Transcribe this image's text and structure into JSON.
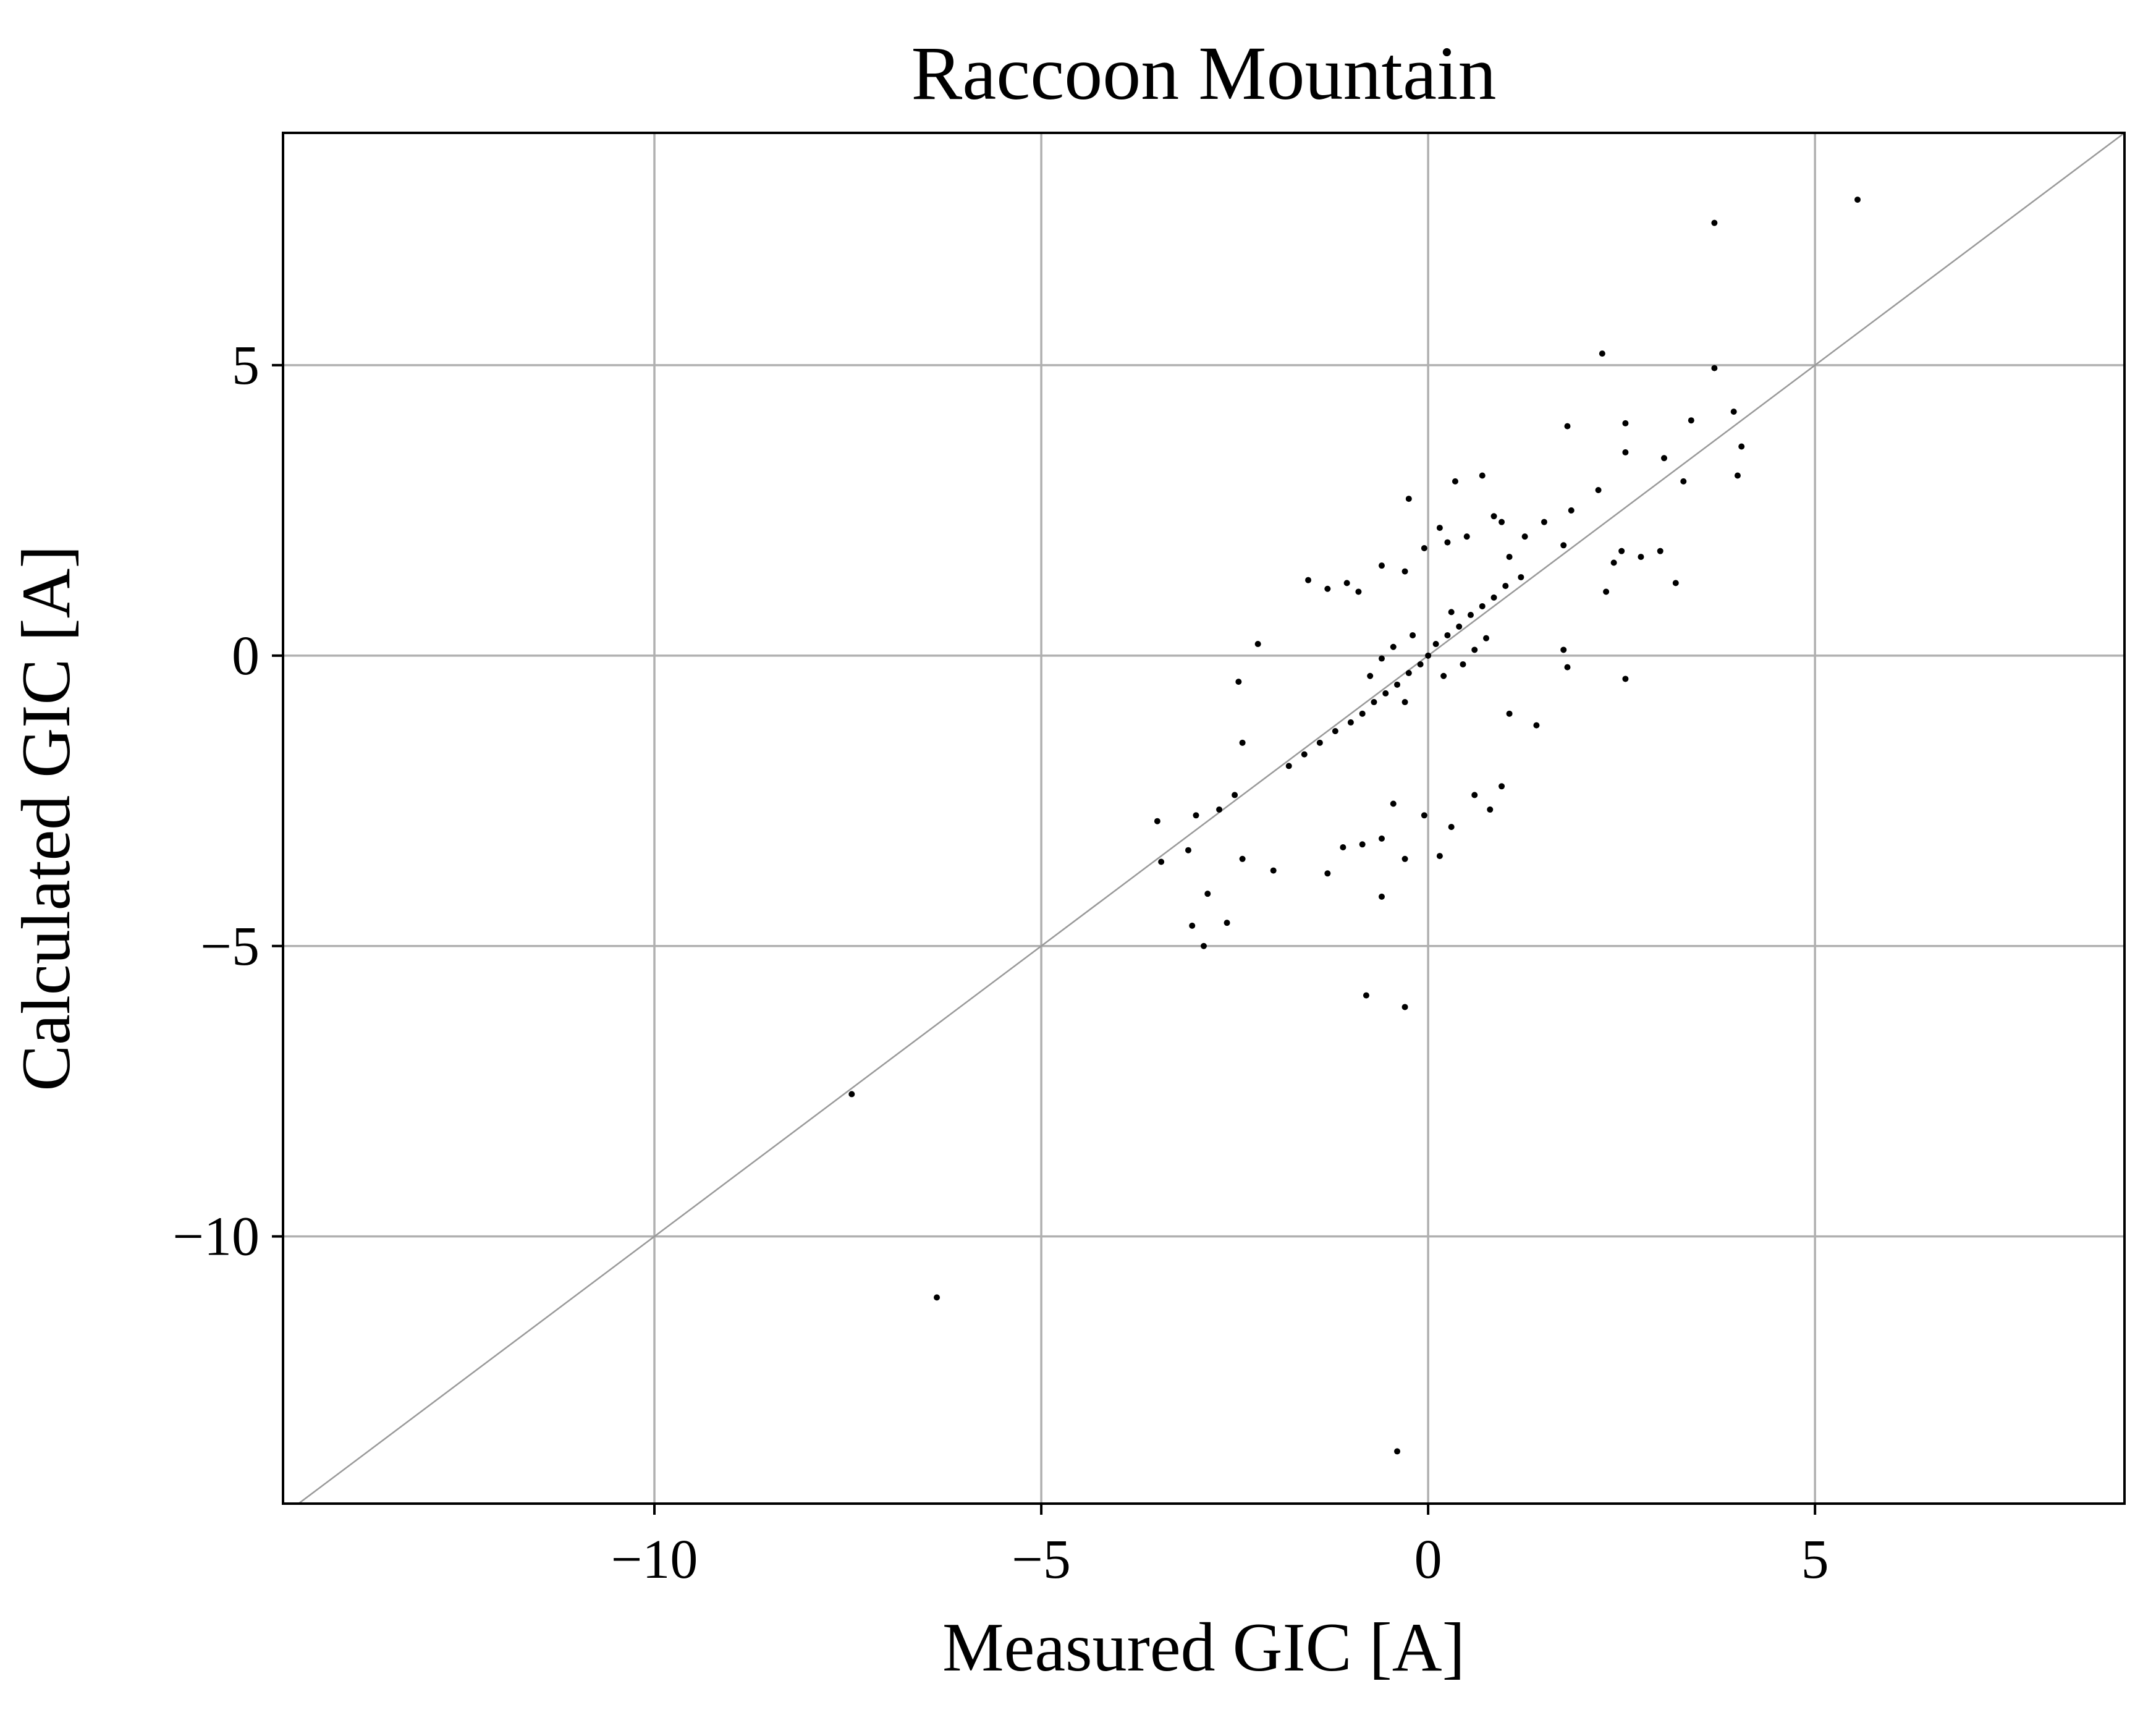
{
  "chart_data": {
    "type": "scatter",
    "title": "Raccoon Mountain",
    "xlabel": "Measured GIC [A]",
    "ylabel": "Calculated GIC [A]",
    "xlim": [
      -14.8,
      9.0
    ],
    "ylim": [
      -14.6,
      9.0
    ],
    "xticks": [
      {
        "value": -10,
        "label": "−10"
      },
      {
        "value": -5,
        "label": "−5"
      },
      {
        "value": 0,
        "label": "0"
      },
      {
        "value": 5,
        "label": "5"
      }
    ],
    "yticks": [
      {
        "value": -10,
        "label": "−10"
      },
      {
        "value": -5,
        "label": "−5"
      },
      {
        "value": 0,
        "label": "0"
      },
      {
        "value": 5,
        "label": "5"
      }
    ],
    "grid": true,
    "reference_line": "y = x",
    "colors": {
      "points": "#000000",
      "grid": "#b0b0b0",
      "reference_line": "#999999",
      "frame": "#000000"
    },
    "series": [
      {
        "points": [
          [
            5.55,
            7.85
          ],
          [
            3.7,
            7.45
          ],
          [
            2.25,
            5.2
          ],
          [
            3.7,
            4.95
          ],
          [
            3.95,
            4.2
          ],
          [
            4.05,
            3.6
          ],
          [
            4.0,
            3.1
          ],
          [
            3.3,
            3.0
          ],
          [
            2.55,
            3.5
          ],
          [
            3.05,
            3.4
          ],
          [
            1.8,
            3.95
          ],
          [
            2.55,
            4.0
          ],
          [
            3.4,
            4.05
          ],
          [
            2.2,
            2.85
          ],
          [
            1.85,
            2.5
          ],
          [
            2.5,
            1.8
          ],
          [
            2.75,
            1.7
          ],
          [
            3.0,
            1.8
          ],
          [
            3.2,
            1.25
          ],
          [
            2.4,
            1.6
          ],
          [
            1.75,
            1.9
          ],
          [
            2.3,
            1.1
          ],
          [
            2.55,
            -0.4
          ],
          [
            1.8,
            -0.2
          ],
          [
            1.75,
            0.1
          ],
          [
            0.35,
            3.0
          ],
          [
            0.7,
            3.1
          ],
          [
            -0.25,
            2.7
          ],
          [
            0.15,
            2.2
          ],
          [
            0.85,
            2.4
          ],
          [
            -2.2,
            0.2
          ],
          [
            -2.45,
            -0.45
          ],
          [
            -2.4,
            -1.5
          ],
          [
            -2.5,
            -2.4
          ],
          [
            -2.7,
            -2.65
          ],
          [
            -3.0,
            -2.75
          ],
          [
            -3.5,
            -2.85
          ],
          [
            -3.45,
            -3.55
          ],
          [
            -3.1,
            -3.35
          ],
          [
            -2.85,
            -4.1
          ],
          [
            -3.05,
            -4.65
          ],
          [
            -2.9,
            -5.0
          ],
          [
            -2.6,
            -4.6
          ],
          [
            -2.4,
            -3.5
          ],
          [
            -2.0,
            -3.7
          ],
          [
            -1.3,
            -3.75
          ],
          [
            -1.1,
            -3.3
          ],
          [
            -0.85,
            -3.25
          ],
          [
            -0.6,
            -3.15
          ],
          [
            -0.3,
            -3.5
          ],
          [
            0.15,
            -3.45
          ],
          [
            0.3,
            -2.95
          ],
          [
            -0.6,
            -4.15
          ],
          [
            -0.8,
            -5.85
          ],
          [
            -0.3,
            -6.05
          ],
          [
            -7.45,
            -7.55
          ],
          [
            -6.35,
            -11.05
          ],
          [
            -0.4,
            -13.7
          ],
          [
            0.8,
            -2.65
          ],
          [
            0.95,
            -2.25
          ],
          [
            0.6,
            -2.4
          ],
          [
            -0.05,
            -2.75
          ],
          [
            -0.45,
            -2.55
          ],
          [
            1.4,
            -1.2
          ],
          [
            1.05,
            -1.0
          ],
          [
            -1.55,
            1.3
          ],
          [
            -1.3,
            1.15
          ],
          [
            -1.05,
            1.25
          ],
          [
            -0.9,
            1.1
          ],
          [
            -0.6,
            1.55
          ],
          [
            -0.3,
            1.45
          ],
          [
            -0.05,
            1.85
          ],
          [
            0.25,
            1.95
          ],
          [
            0.5,
            2.05
          ],
          [
            0.95,
            2.3
          ],
          [
            1.25,
            2.05
          ],
          [
            1.5,
            2.3
          ],
          [
            1.05,
            1.7
          ],
          [
            0.0,
            0.0
          ],
          [
            0.1,
            0.2
          ],
          [
            -0.1,
            -0.15
          ],
          [
            0.25,
            0.35
          ],
          [
            -0.25,
            -0.3
          ],
          [
            0.4,
            0.5
          ],
          [
            -0.4,
            -0.5
          ],
          [
            0.55,
            0.7
          ],
          [
            -0.55,
            -0.65
          ],
          [
            0.7,
            0.85
          ],
          [
            -0.7,
            -0.8
          ],
          [
            0.85,
            1.0
          ],
          [
            -0.85,
            -1.0
          ],
          [
            1.0,
            1.2
          ],
          [
            -1.0,
            -1.15
          ],
          [
            1.2,
            1.35
          ],
          [
            -1.2,
            -1.3
          ],
          [
            -1.4,
            -1.5
          ],
          [
            -1.6,
            -1.7
          ],
          [
            -1.8,
            -1.9
          ],
          [
            0.2,
            -0.35
          ],
          [
            -0.2,
            0.35
          ],
          [
            0.45,
            -0.15
          ],
          [
            -0.45,
            0.15
          ],
          [
            0.6,
            0.1
          ],
          [
            -0.6,
            -0.05
          ],
          [
            0.3,
            0.75
          ],
          [
            -0.3,
            -0.8
          ],
          [
            0.75,
            0.3
          ],
          [
            -0.75,
            -0.35
          ]
        ]
      }
    ]
  }
}
